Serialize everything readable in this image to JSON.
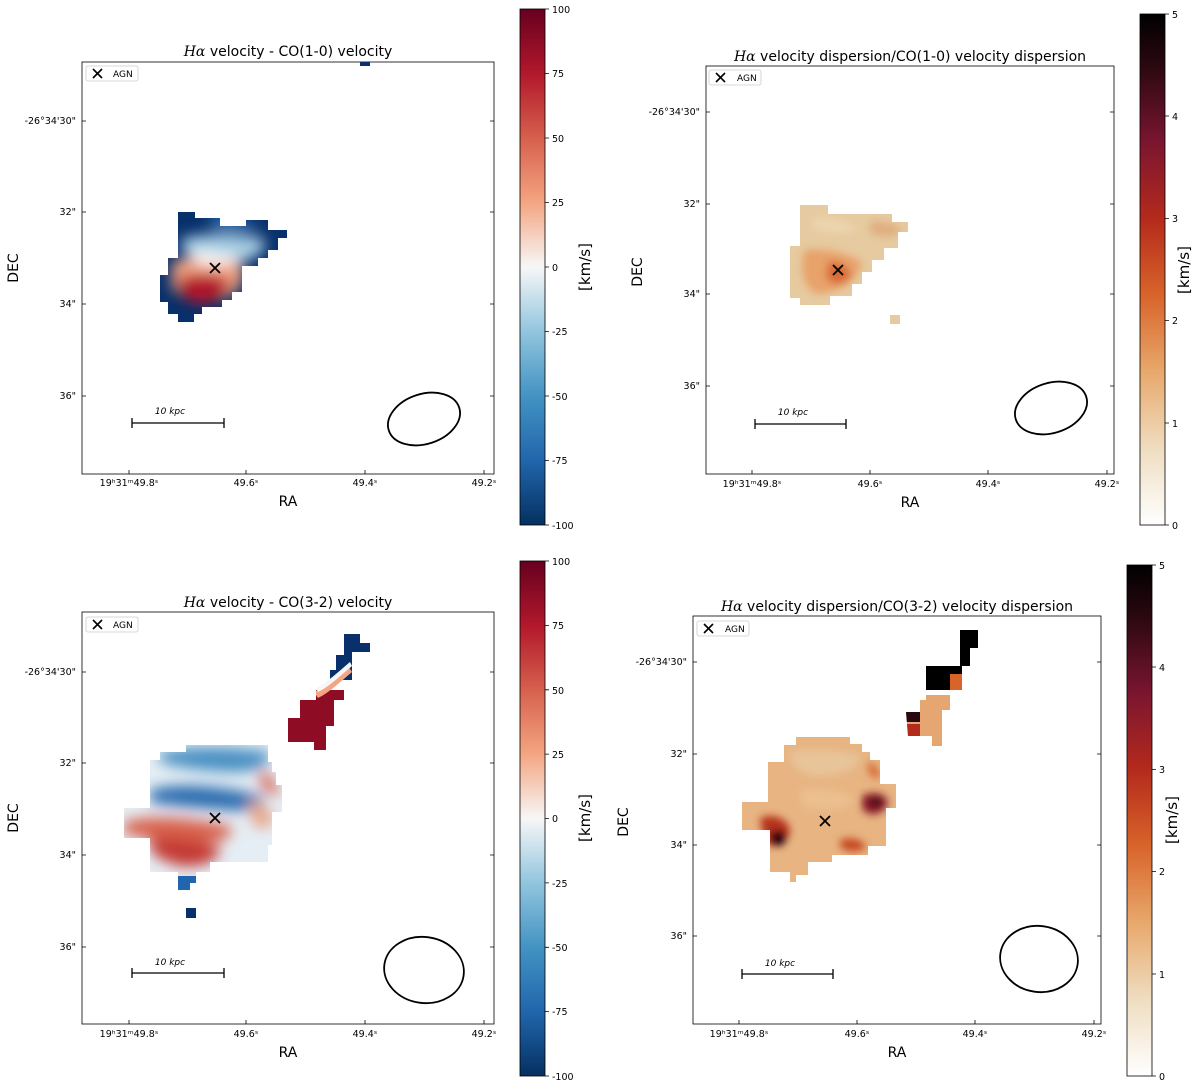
{
  "chart_data": [
    {
      "type": "heatmap",
      "title_prefix": "Hα",
      "title_suffix": " velocity - CO(1-0) velocity",
      "xlabel": "RA",
      "ylabel": "DEC",
      "xticks": [
        "19ʰ31ᵐ49.8ˢ",
        "49.6ˢ",
        "49.4ˢ",
        "49.2ˢ"
      ],
      "yticks": [
        "-26°34'30\"",
        "32\"",
        "34\"",
        "36\""
      ],
      "legend": {
        "label": "AGN",
        "marker": "x",
        "location": "top-left"
      },
      "scalebar_label": "10 kpc",
      "colorbar": {
        "label": "[km/s]",
        "min": -100,
        "max": 100,
        "cmap": "RdBu_r",
        "ticks": [
          "100",
          "75",
          "50",
          "25",
          "0",
          "-25",
          "-50",
          "-75",
          "-100"
        ]
      },
      "agn_position": "near centre of emission region",
      "field_summary": "blueshifted (~ -100 km/s) outer band to the north, redshifted (~ +80 km/s) core south-west of AGN"
    },
    {
      "type": "heatmap",
      "title_prefix": "Hα",
      "title_suffix": " velocity dispersion/CO(1-0) velocity dispersion",
      "xlabel": "RA",
      "ylabel": "DEC",
      "xticks": [
        "19ʰ31ᵐ49.8ˢ",
        "49.6ˢ",
        "49.4ˢ",
        "49.2ˢ"
      ],
      "yticks": [
        "-26°34'30\"",
        "32\"",
        "34\"",
        "36\""
      ],
      "legend": {
        "label": "AGN",
        "marker": "x",
        "location": "top-left"
      },
      "scalebar_label": "10 kpc",
      "colorbar": {
        "label": "[km/s]",
        "min": 0,
        "max": 5,
        "cmap": "gist_heat_r",
        "ticks": [
          "5",
          "4",
          "3",
          "2",
          "1",
          "0"
        ]
      },
      "field_summary": "ratio ~0.8-1.8 across compact region"
    },
    {
      "type": "heatmap",
      "title_prefix": "Hα",
      "title_suffix": " velocity - CO(3-2) velocity",
      "xlabel": "RA",
      "ylabel": "DEC",
      "xticks": [
        "19ʰ31ᵐ49.8ˢ",
        "49.6ˢ",
        "49.4ˢ",
        "49.2ˢ"
      ],
      "yticks": [
        "-26°34'30\"",
        "32\"",
        "34\"",
        "36\""
      ],
      "legend": {
        "label": "AGN",
        "marker": "x",
        "location": "top-left"
      },
      "scalebar_label": "10 kpc",
      "colorbar": {
        "label": "[km/s]",
        "min": -100,
        "max": 100,
        "cmap": "RdBu_r",
        "ticks": [
          "100",
          "75",
          "50",
          "25",
          "0",
          "-25",
          "-50",
          "-75",
          "-100"
        ]
      },
      "field_summary": "extended disk with blue band north of AGN, red south; NE filament blue (top) and red (bottom)"
    },
    {
      "type": "heatmap",
      "title_prefix": "Hα",
      "title_suffix": " velocity dispersion/CO(3-2) velocity dispersion",
      "xlabel": "RA",
      "ylabel": "DEC",
      "xticks": [
        "19ʰ31ᵐ49.8ˢ",
        "49.6ˢ",
        "49.4ˢ",
        "49.2ˢ"
      ],
      "yticks": [
        "-26°34'30\"",
        "32\"",
        "34\"",
        "36\""
      ],
      "legend": {
        "label": "AGN",
        "marker": "x",
        "location": "top-left"
      },
      "scalebar_label": "10 kpc",
      "colorbar": {
        "label": "[km/s]",
        "min": 0,
        "max": 5,
        "cmap": "gist_heat_r",
        "ticks": [
          "5",
          "4",
          "3",
          "2",
          "1",
          "0"
        ]
      },
      "field_summary": "ratio ~1-2 over disk with hotspots up to ~5; NE filament tip saturated at 5"
    }
  ]
}
